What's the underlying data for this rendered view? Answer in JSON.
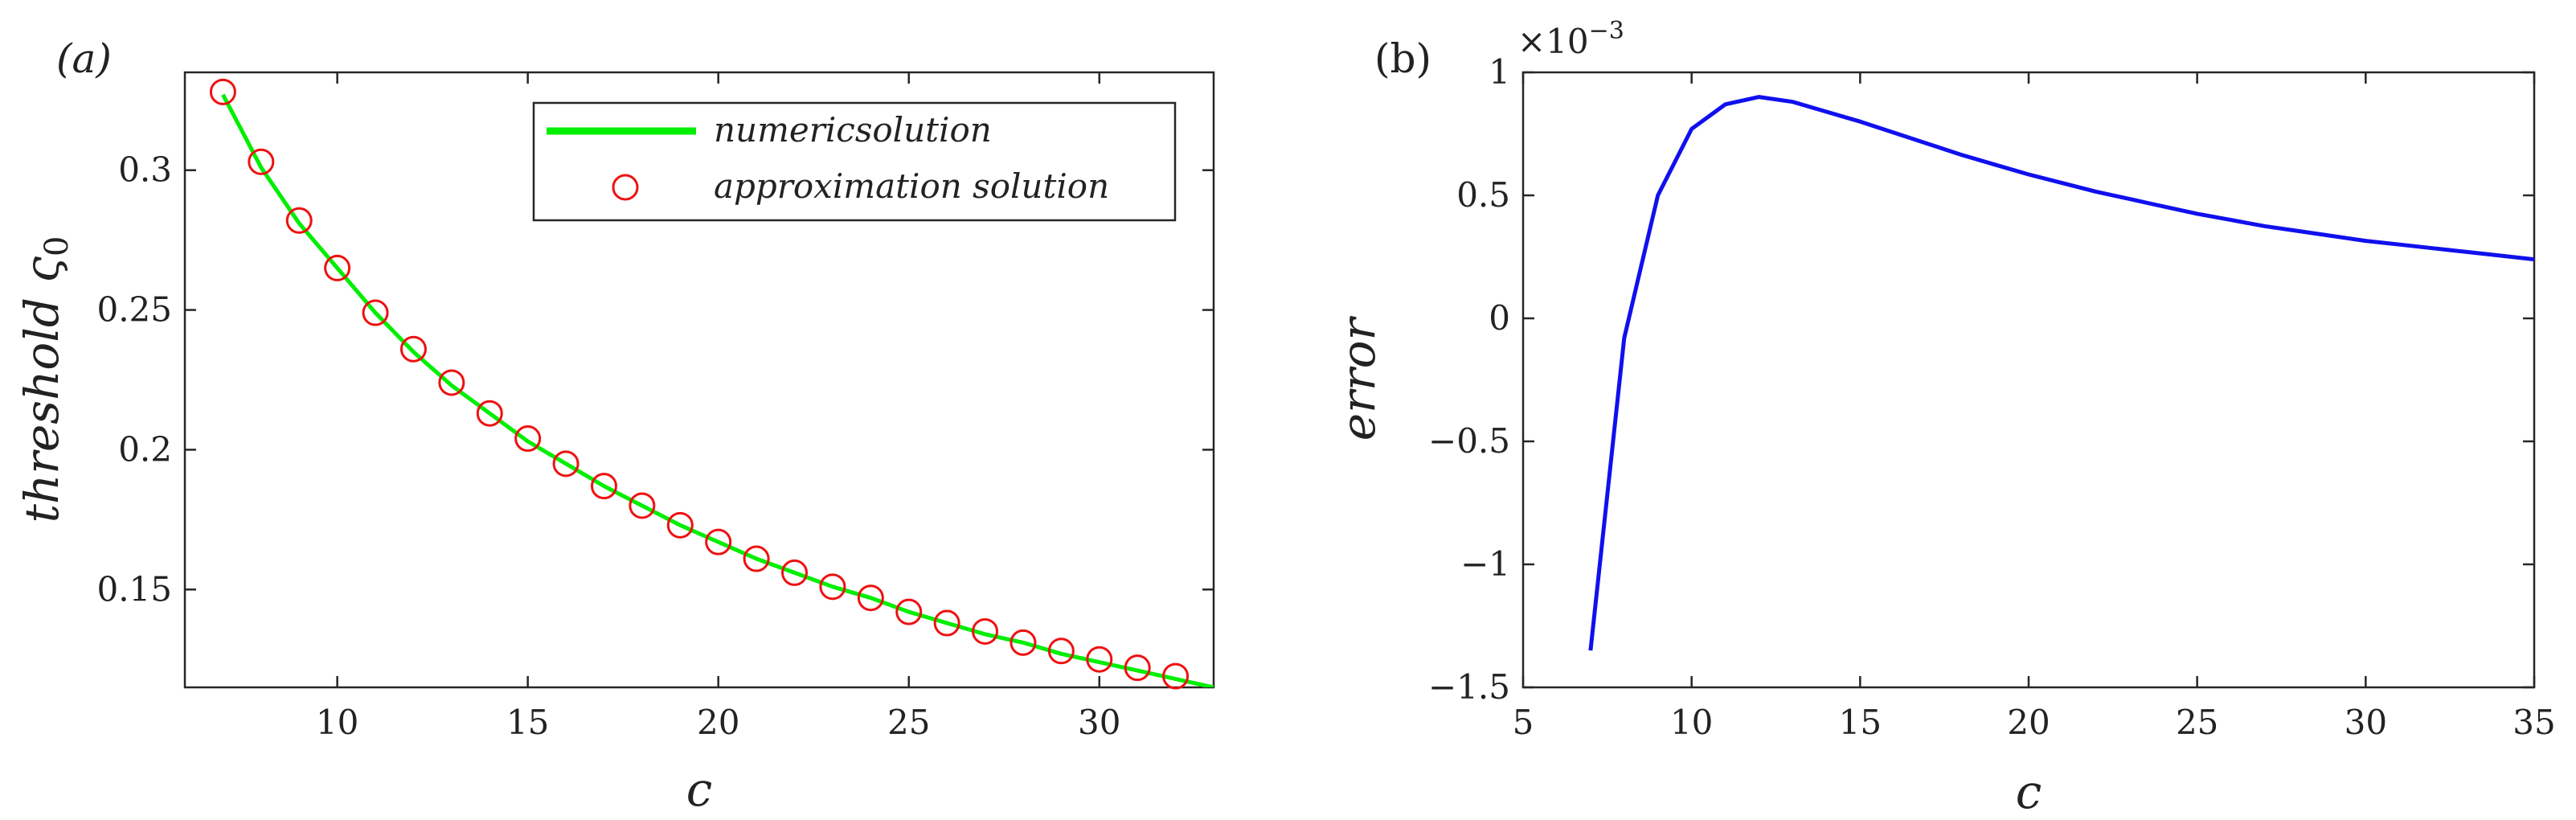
{
  "chart_data": [
    {
      "panel_label": "(a)",
      "type": "line",
      "xlabel": "c",
      "ylabel_main": "threshold",
      "ylabel_symbol": "ς",
      "ylabel_sub": "0",
      "xlim": [
        6,
        33
      ],
      "ylim": [
        0.115,
        0.335
      ],
      "xticks": [
        10,
        15,
        20,
        25,
        30
      ],
      "xtick_labels": [
        "10",
        "15",
        "20",
        "25",
        "30"
      ],
      "yticks": [
        0.15,
        0.2,
        0.25,
        0.3
      ],
      "ytick_labels": [
        "0.15",
        "0.2",
        "0.25",
        "0.3"
      ],
      "grid": false,
      "legend_position": "top-right",
      "series": [
        {
          "name": "numericsolution",
          "style": "line",
          "color": "#00ee00",
          "x": [
            7,
            8,
            9,
            10,
            11,
            12,
            13,
            14,
            15,
            16,
            17,
            18,
            19,
            20,
            21,
            22,
            23,
            24,
            25,
            26,
            27,
            28,
            29,
            30,
            31,
            32,
            33
          ],
          "y": [
            0.327,
            0.301,
            0.281,
            0.265,
            0.249,
            0.235,
            0.223,
            0.213,
            0.203,
            0.195,
            0.187,
            0.18,
            0.173,
            0.167,
            0.161,
            0.156,
            0.151,
            0.147,
            0.142,
            0.138,
            0.134,
            0.131,
            0.127,
            0.124,
            0.121,
            0.118,
            0.115
          ]
        },
        {
          "name": "approximation solution",
          "style": "marker",
          "marker": "circle",
          "color": "#ee1111",
          "x": [
            7,
            8,
            9,
            10,
            11,
            12,
            13,
            14,
            15,
            16,
            17,
            18,
            19,
            20,
            21,
            22,
            23,
            24,
            25,
            26,
            27,
            28,
            29,
            30,
            31,
            32
          ],
          "y": [
            0.328,
            0.303,
            0.282,
            0.265,
            0.249,
            0.236,
            0.224,
            0.213,
            0.204,
            0.195,
            0.187,
            0.18,
            0.173,
            0.167,
            0.161,
            0.156,
            0.151,
            0.147,
            0.142,
            0.138,
            0.135,
            0.131,
            0.128,
            0.125,
            0.122,
            0.119
          ]
        }
      ]
    },
    {
      "panel_label": "(b)",
      "type": "line",
      "xlabel": "c",
      "ylabel": "error",
      "exponent_base": "×10",
      "exponent_power": "−3",
      "xlim": [
        5,
        35
      ],
      "ylim": [
        -1.5,
        1.0
      ],
      "xticks": [
        5,
        10,
        15,
        20,
        25,
        30,
        35
      ],
      "xtick_labels": [
        "5",
        "10",
        "15",
        "20",
        "25",
        "30",
        "35"
      ],
      "yticks": [
        -1.5,
        -1,
        -0.5,
        0,
        0.5,
        1
      ],
      "ytick_labels": [
        "−1.5",
        "−1",
        "−0.5",
        "0",
        "0.5",
        "1"
      ],
      "grid": false,
      "series": [
        {
          "color": "#1010ee",
          "x": [
            7,
            8,
            9,
            10,
            11,
            12,
            13,
            14,
            15,
            16,
            17,
            18,
            19,
            20,
            21,
            22,
            23,
            24,
            25,
            26,
            27,
            28,
            29,
            30,
            31,
            32,
            33,
            34,
            35
          ],
          "y": [
            -1.35,
            -0.08,
            0.5,
            0.77,
            0.87,
            0.9,
            0.88,
            0.84,
            0.8,
            0.755,
            0.71,
            0.665,
            0.625,
            0.585,
            0.55,
            0.515,
            0.485,
            0.455,
            0.425,
            0.4,
            0.375,
            0.355,
            0.335,
            0.315,
            0.3,
            0.285,
            0.27,
            0.255,
            0.24
          ]
        }
      ]
    }
  ]
}
